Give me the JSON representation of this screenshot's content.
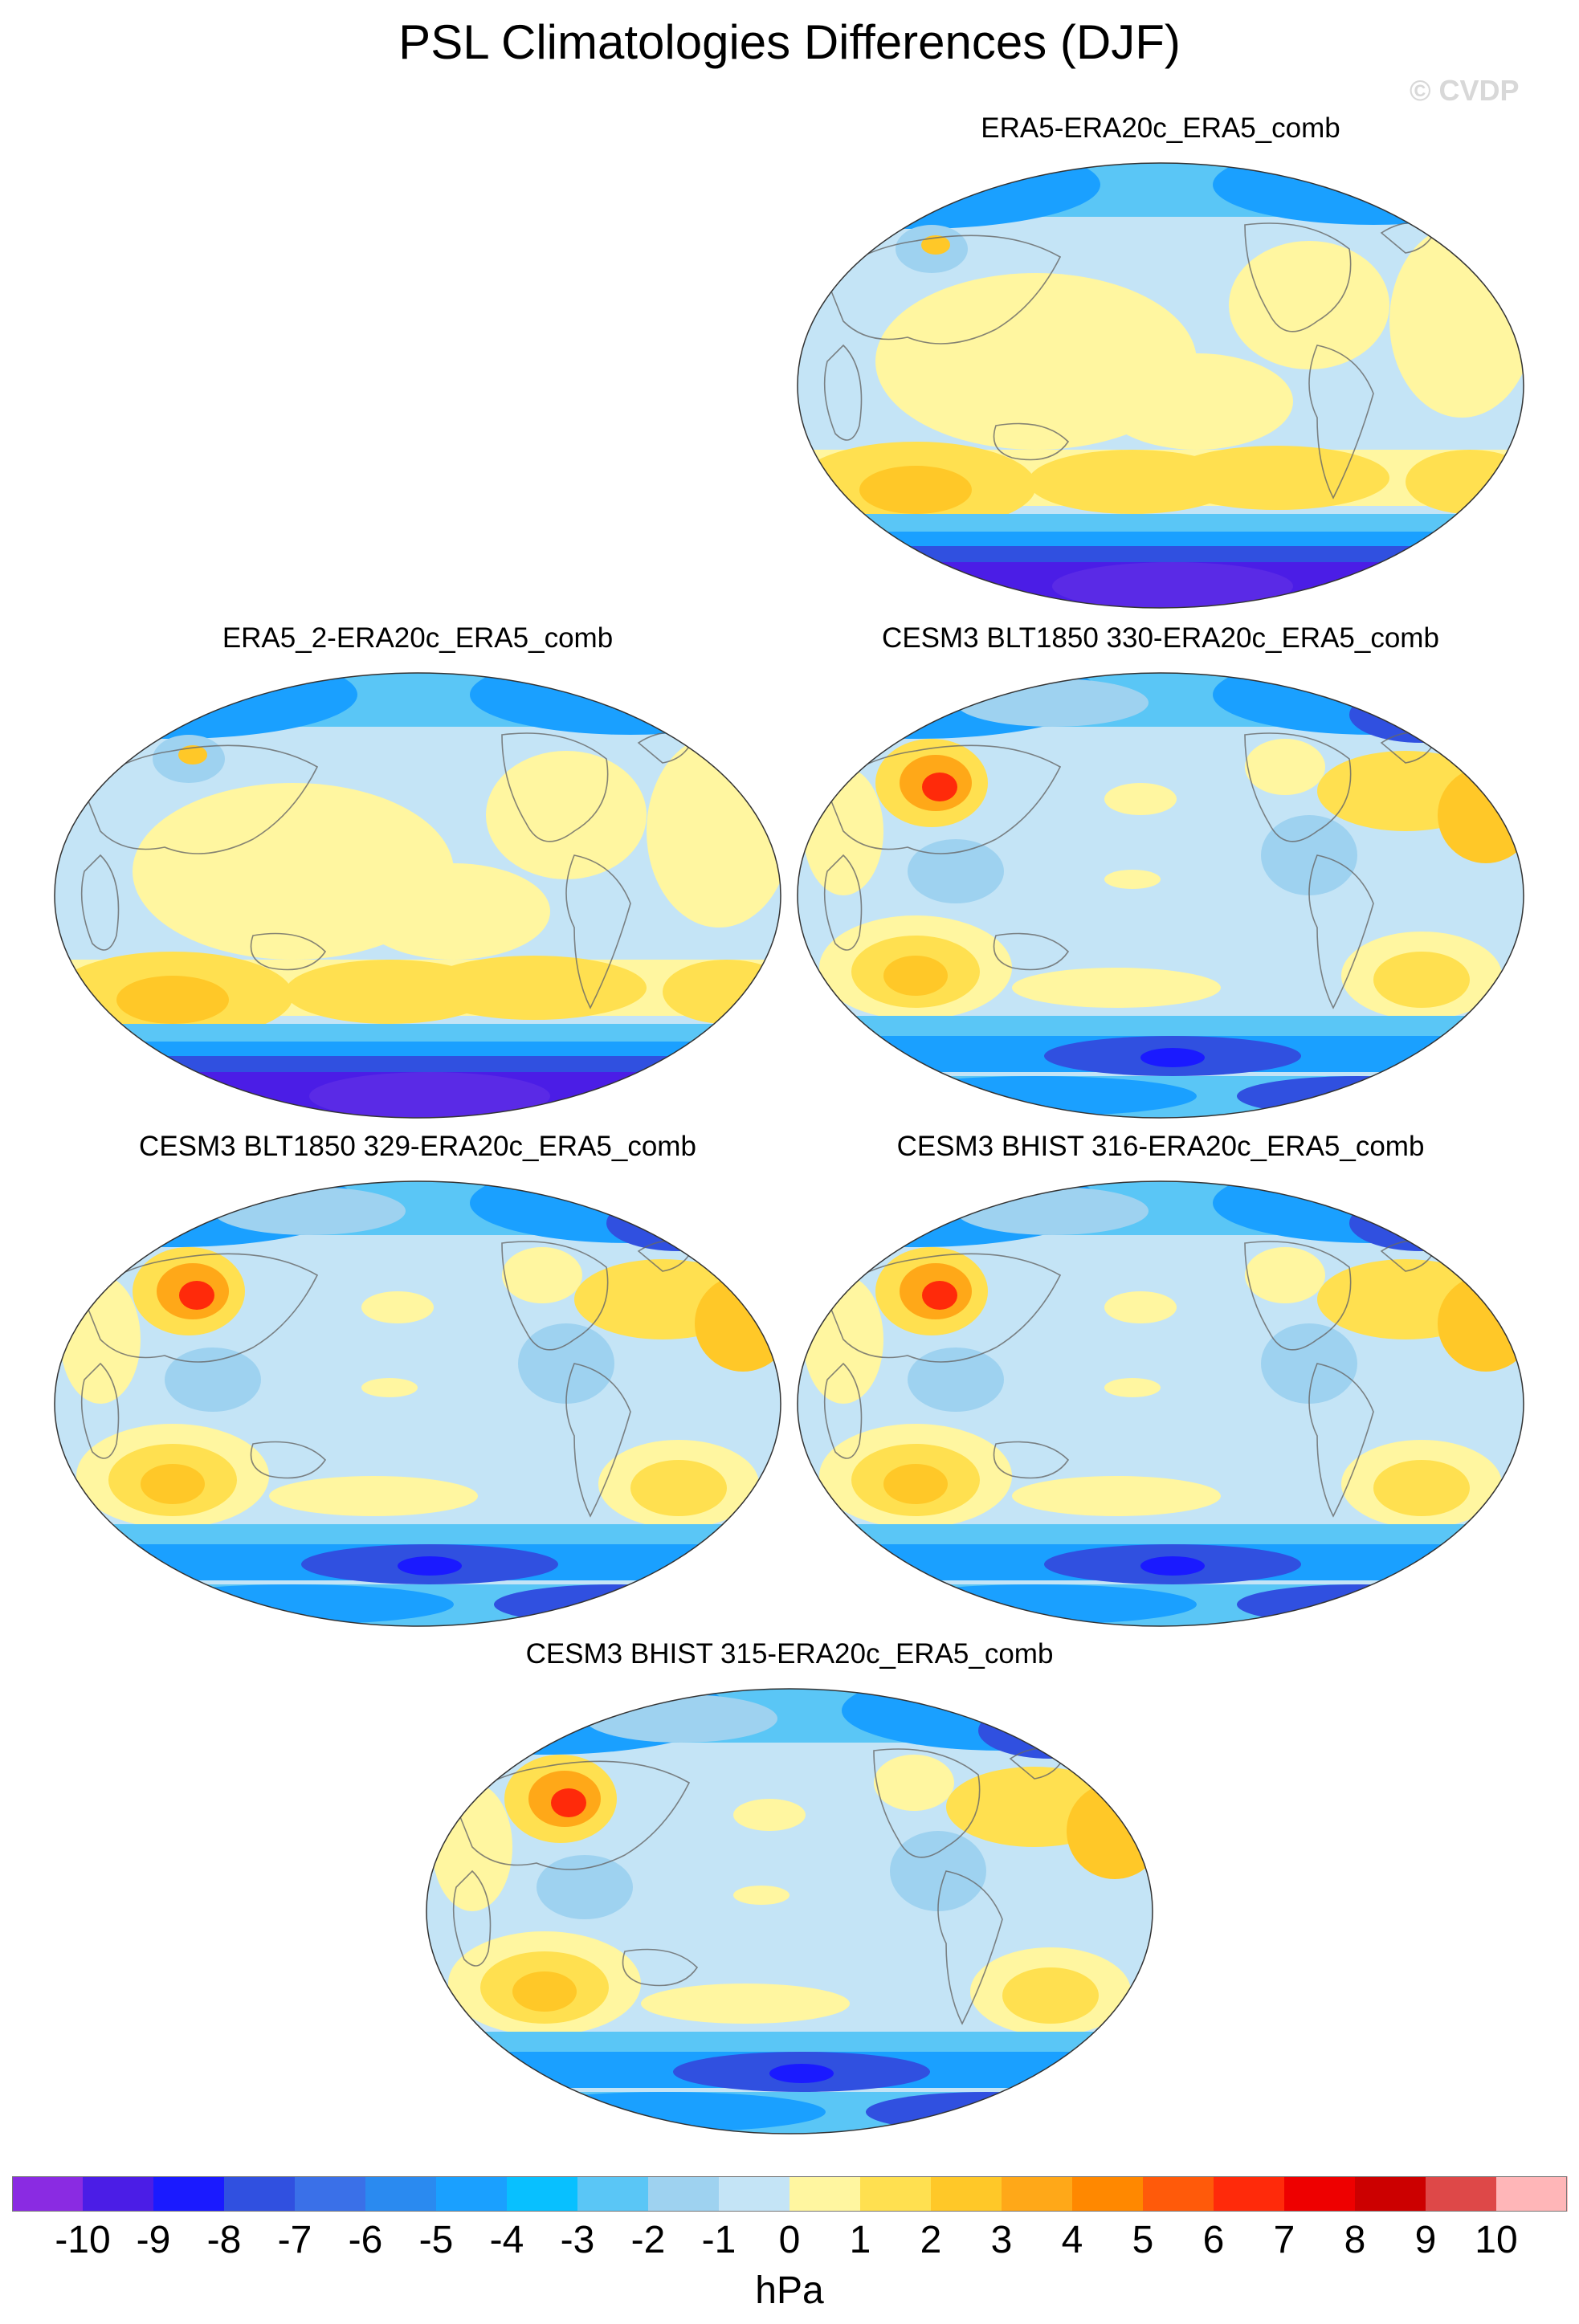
{
  "figure": {
    "title": "PSL Climatologies Differences (DJF)",
    "watermark": "© CVDP"
  },
  "panels": [
    {
      "title": "ERA5-ERA20c_ERA5_comb",
      "style": "era"
    },
    {
      "title": "ERA5_2-ERA20c_ERA5_comb",
      "style": "era"
    },
    {
      "title": "CESM3 BLT1850 330-ERA20c_ERA5_comb",
      "style": "cesm"
    },
    {
      "title": "CESM3 BLT1850 329-ERA20c_ERA5_comb",
      "style": "cesm"
    },
    {
      "title": "CESM3 BHIST 316-ERA20c_ERA5_comb",
      "style": "cesm"
    },
    {
      "title": "CESM3 BHIST 315-ERA20c_ERA5_comb",
      "style": "cesm"
    }
  ],
  "colorbar": {
    "units": "hPa",
    "ticks": [
      "-10",
      "-9",
      "-8",
      "-7",
      "-6",
      "-5",
      "-4",
      "-3",
      "-2",
      "-1",
      "0",
      "1",
      "2",
      "3",
      "4",
      "5",
      "6",
      "7",
      "8",
      "9",
      "10"
    ],
    "colors": [
      "#8a2be2",
      "#4b1de6",
      "#1a1aff",
      "#3050e0",
      "#3a70e8",
      "#2a8af0",
      "#1aa0ff",
      "#08c0ff",
      "#5ac6f6",
      "#9ed2f0",
      "#c4e4f6",
      "#fff6a0",
      "#ffe050",
      "#ffc828",
      "#ffa818",
      "#ff8800",
      "#ff5a0a",
      "#ff2a0a",
      "#ee0000",
      "#cc0000",
      "#de4848",
      "#ffb6b8"
    ]
  }
}
